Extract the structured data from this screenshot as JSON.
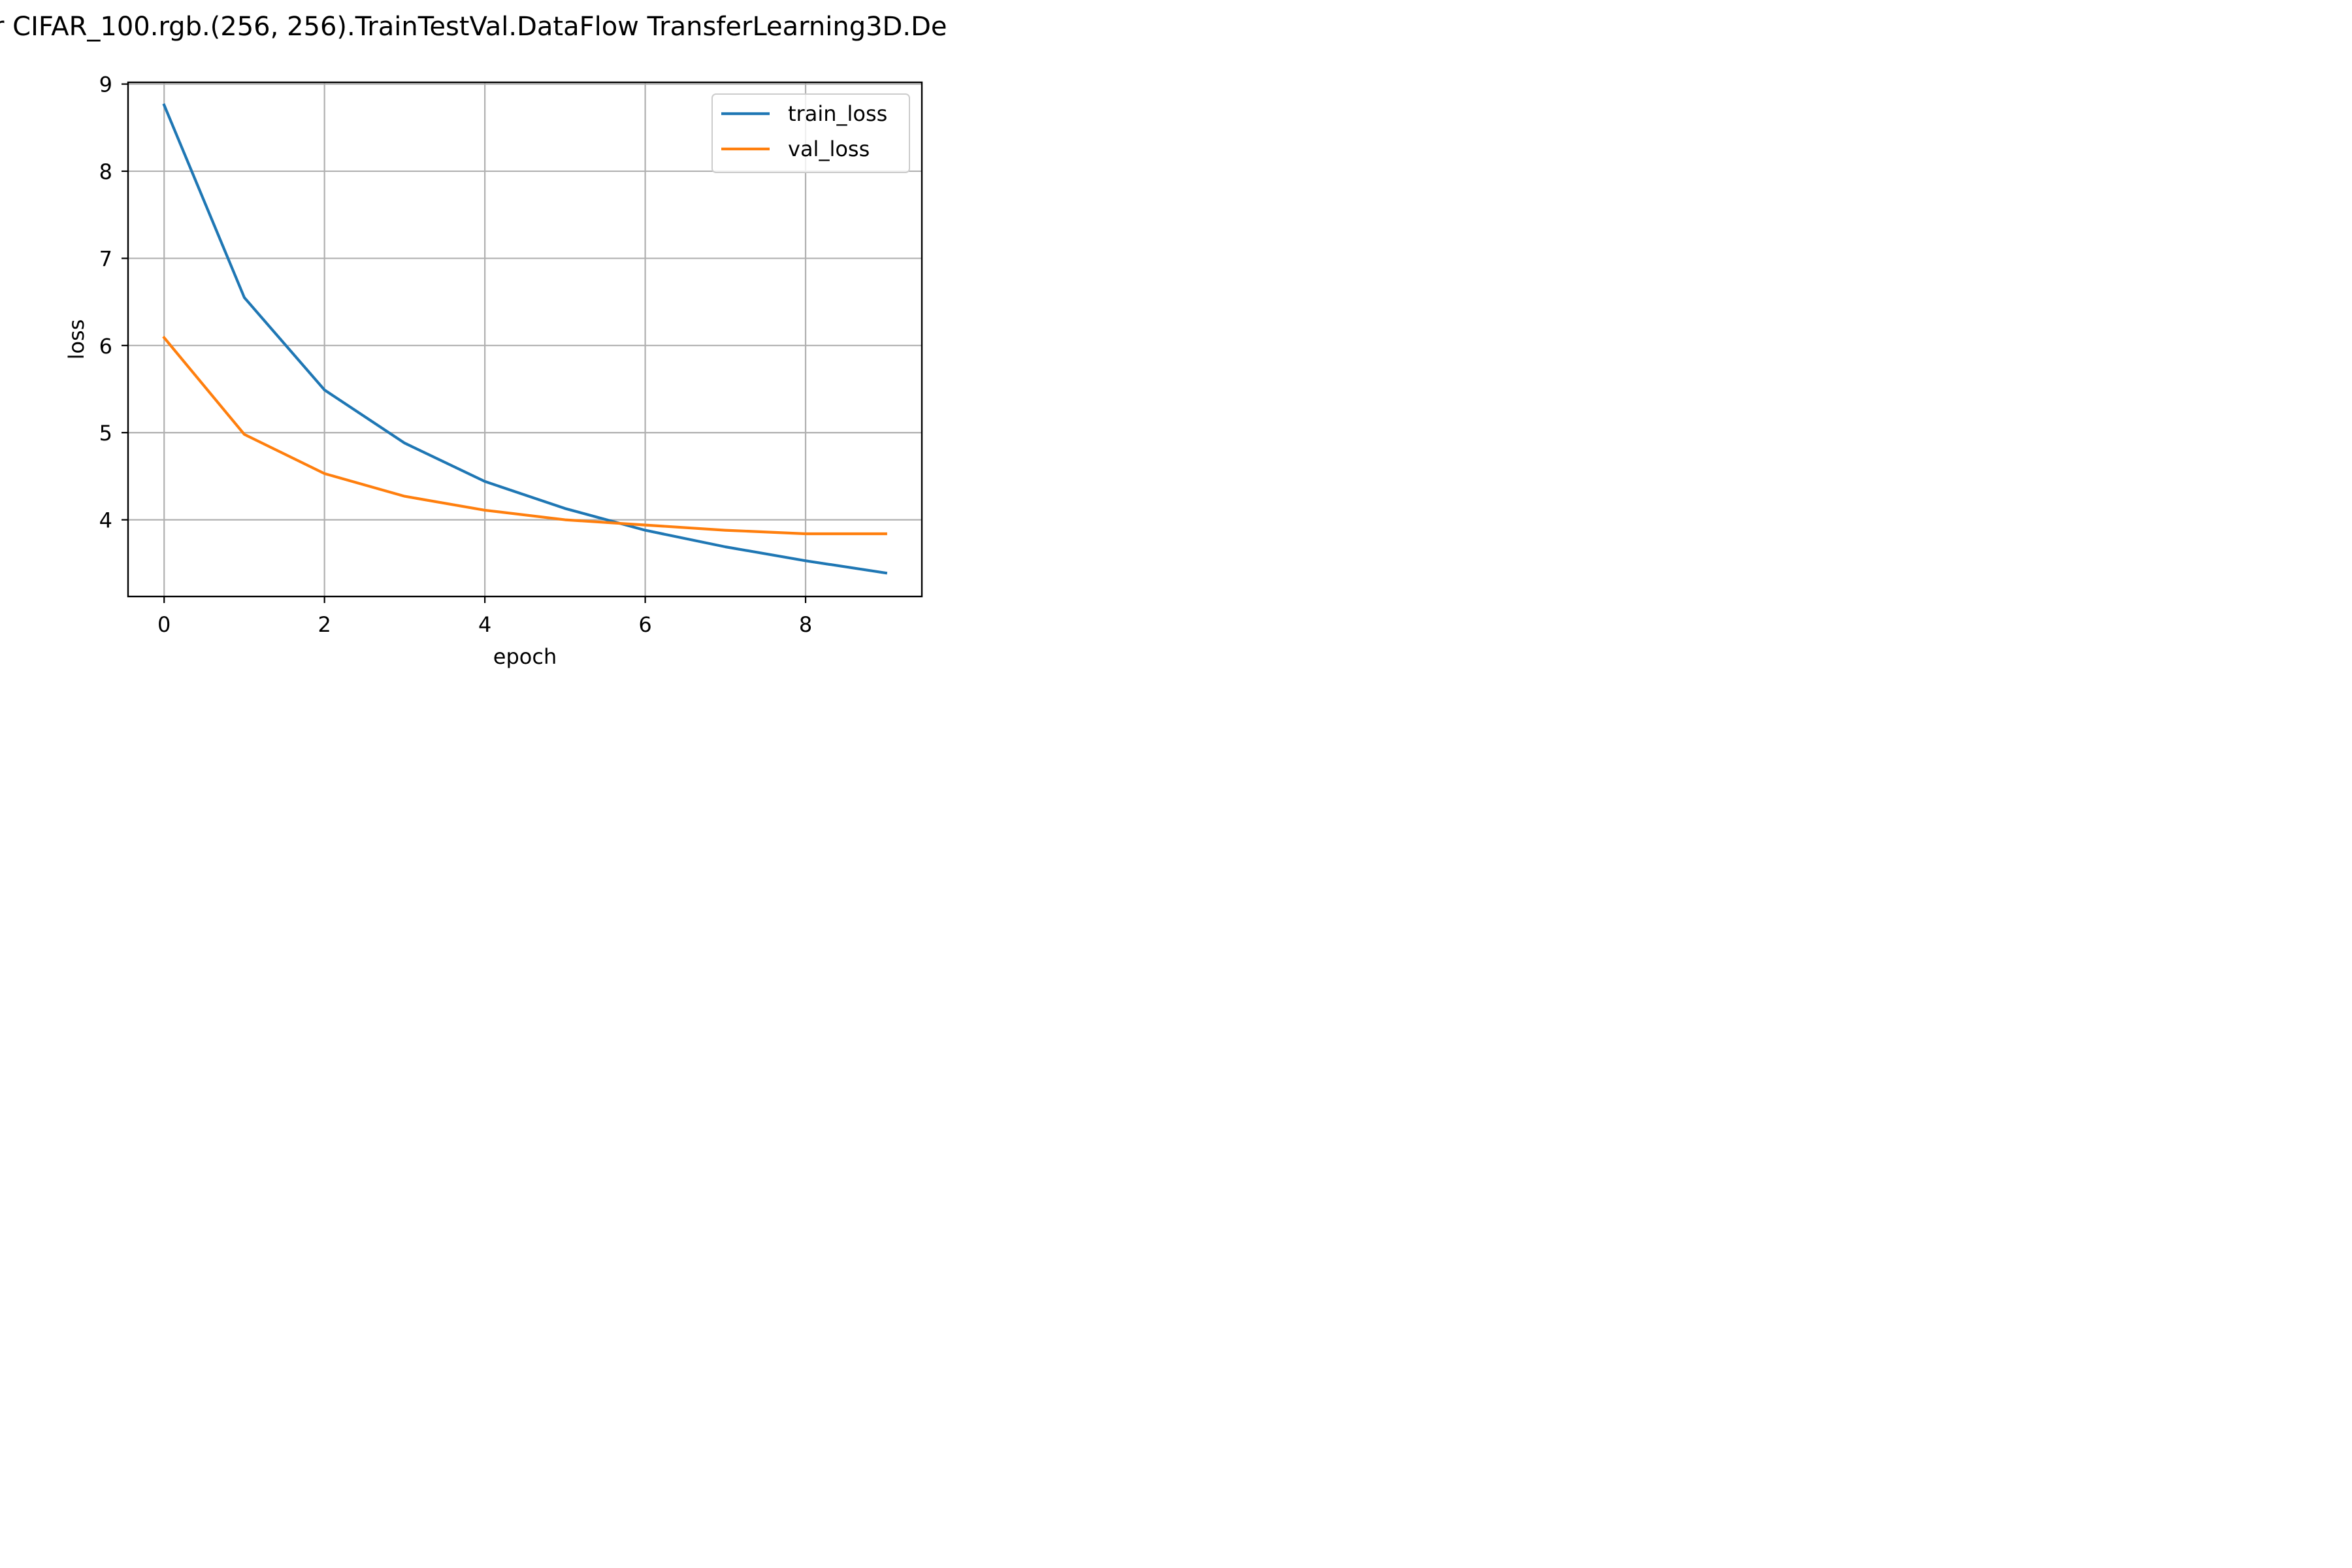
{
  "chart_data": {
    "type": "line",
    "title": "r CIFAR_100.rgb.(256, 256).TrainTestVal.DataFlow TransferLearning3D.De",
    "xlabel": "epoch",
    "ylabel": "loss",
    "xlim": [
      -0.45,
      9.45
    ],
    "ylim": [
      3.12,
      9.02
    ],
    "x_ticks": [
      0,
      2,
      4,
      6,
      8
    ],
    "y_ticks": [
      4,
      5,
      6,
      7,
      8,
      9
    ],
    "grid": true,
    "legend_position": "upper right",
    "x": [
      0,
      1,
      2,
      3,
      4,
      5,
      6,
      7,
      8,
      9
    ],
    "series": [
      {
        "name": "train_loss",
        "color": "#1f77b4",
        "values": [
          8.76,
          6.55,
          5.49,
          4.88,
          4.44,
          4.13,
          3.88,
          3.69,
          3.53,
          3.39
        ]
      },
      {
        "name": "val_loss",
        "color": "#ff7f0e",
        "values": [
          6.09,
          4.98,
          4.53,
          4.27,
          4.11,
          4.0,
          3.94,
          3.88,
          3.84,
          3.84
        ]
      }
    ]
  }
}
